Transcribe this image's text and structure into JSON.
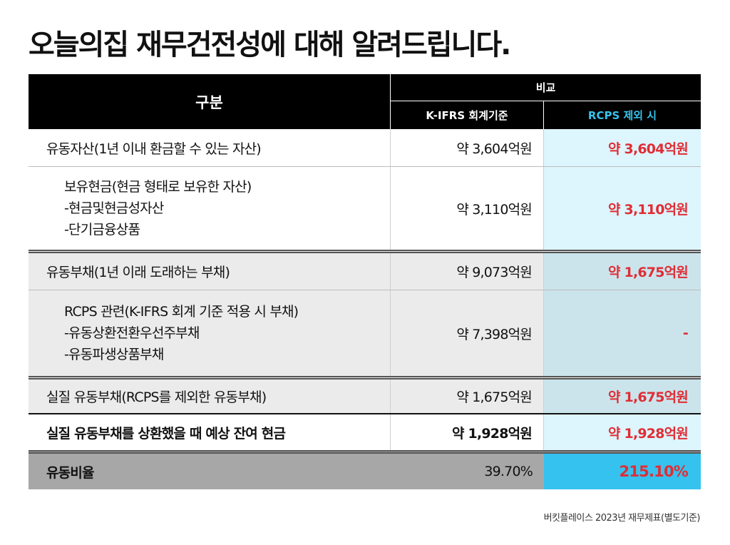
{
  "title": "오늘의집 재무건전성에 대해 알려드립니다.",
  "table": {
    "header": {
      "category": "구분",
      "compare": "비교",
      "col_kifrs": "K-IFRS 회계기준",
      "col_rcps": "RCPS 제외 시"
    },
    "rows": [
      {
        "label_lines": [
          "유동자산(1년 이내 환금할 수 있는 자산)"
        ],
        "kifrs": "약 3,604억원",
        "rcps": "약 3,604억원"
      },
      {
        "label_lines": [
          "보유현금(현금 형태로 보유한 자산)",
          "-현금및현금성자산",
          "-단기금융상품"
        ],
        "kifrs": "약 3,110억원",
        "rcps": "약 3,110억원"
      },
      {
        "label_lines": [
          "유동부채(1년 이래 도래하는 부채)"
        ],
        "kifrs": "약 9,073억원",
        "rcps": "약 1,675억원"
      },
      {
        "label_lines": [
          "RCPS 관련(K-IFRS 회계 기준 적용 시 부채)",
          "-유동상환전환우선주부채",
          "-유동파생상품부채"
        ],
        "kifrs": "약 7,398억원",
        "rcps": "-"
      },
      {
        "label_lines": [
          "실질 유동부채(RCPS를 제외한 유동부채)"
        ],
        "kifrs": "약 1,675억원",
        "rcps": "약 1,675억원"
      },
      {
        "label_lines": [
          "실질 유동부채를 상환했을 때 예상 잔여 현금"
        ],
        "kifrs": "약 1,928억원",
        "rcps": "약 1,928억원"
      }
    ],
    "total": {
      "label": "유동비율",
      "kifrs": "39.70%",
      "rcps": "215.10%"
    }
  },
  "source": "버킷플레이스 2023년 재무제표(별도기준)",
  "colors": {
    "header_bg": "#000000",
    "accent_cyan": "#35c2ee",
    "value_red": "#e02d35",
    "light_blue_col": "#ddf5fc"
  }
}
